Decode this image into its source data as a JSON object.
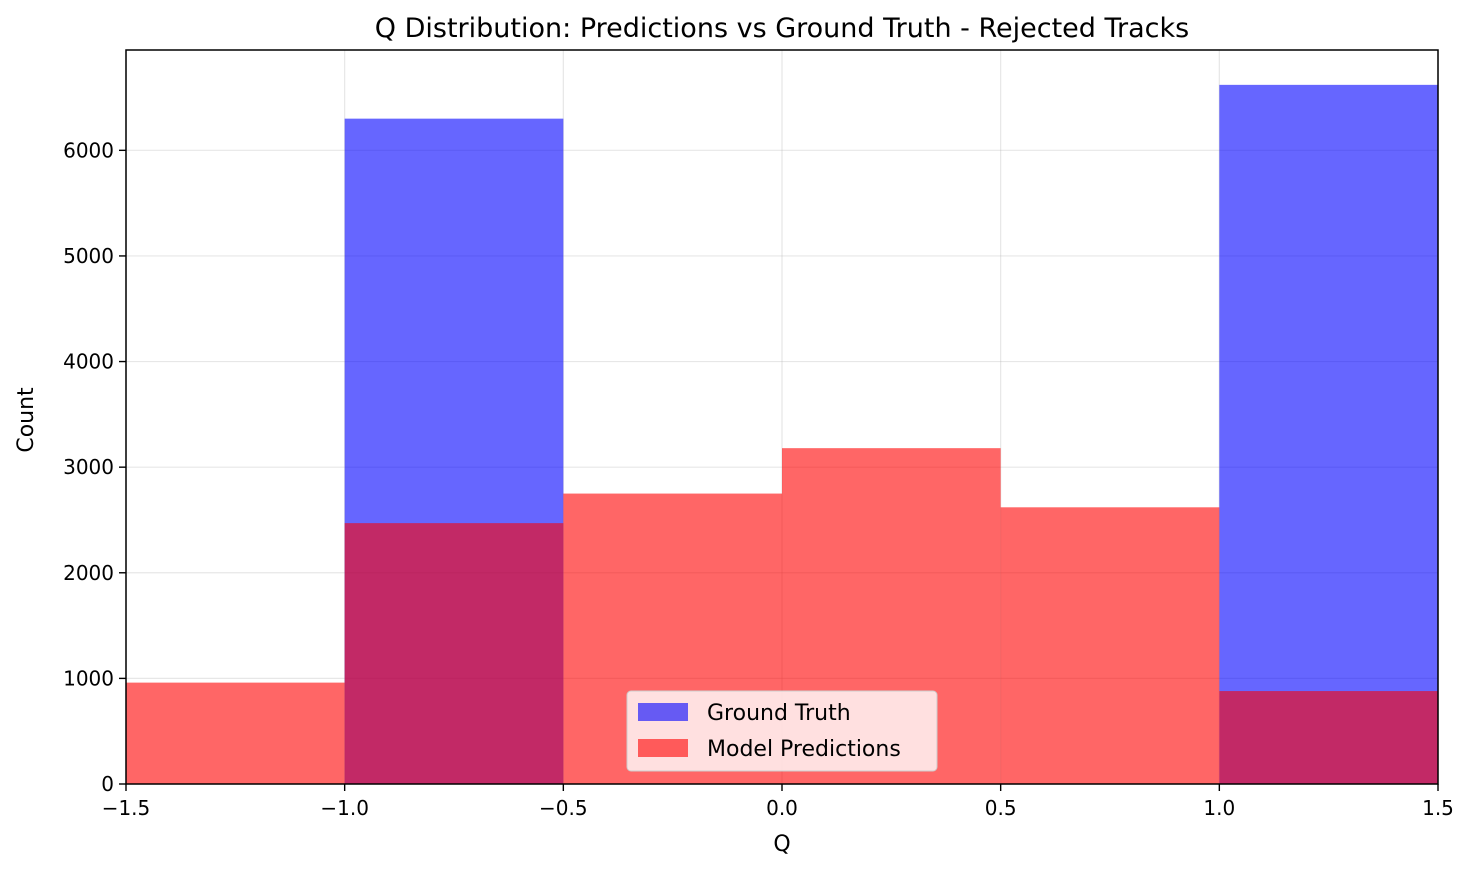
{
  "chart_data": {
    "type": "bar",
    "title": "Q Distribution: Predictions vs Ground Truth - Rejected Tracks",
    "xlabel": "Q",
    "ylabel": "Count",
    "xlim": [
      -1.5,
      1.5
    ],
    "ylim": [
      0,
      6950
    ],
    "bin_edges": [
      -1.5,
      -1.0,
      -0.5,
      0.0,
      0.5,
      1.0,
      1.5
    ],
    "x_ticks": [
      -1.5,
      -1.0,
      -0.5,
      0.0,
      0.5,
      1.0,
      1.5
    ],
    "x_tick_labels": [
      "−1.5",
      "−1.0",
      "−0.5",
      "0.0",
      "0.5",
      "1.0",
      "1.5"
    ],
    "y_ticks": [
      0,
      1000,
      2000,
      3000,
      4000,
      5000,
      6000
    ],
    "y_tick_labels": [
      "0",
      "1000",
      "2000",
      "3000",
      "4000",
      "5000",
      "6000"
    ],
    "grid": true,
    "legend_position": "bottom-center",
    "series": [
      {
        "name": "Ground Truth",
        "color": "#0000ff",
        "opacity": 0.6,
        "values": [
          0,
          6300,
          0,
          0,
          0,
          6620
        ]
      },
      {
        "name": "Model Predictions",
        "color": "#ff0000",
        "opacity": 0.6,
        "values": [
          960,
          2470,
          2750,
          3180,
          2620,
          880
        ]
      }
    ]
  }
}
